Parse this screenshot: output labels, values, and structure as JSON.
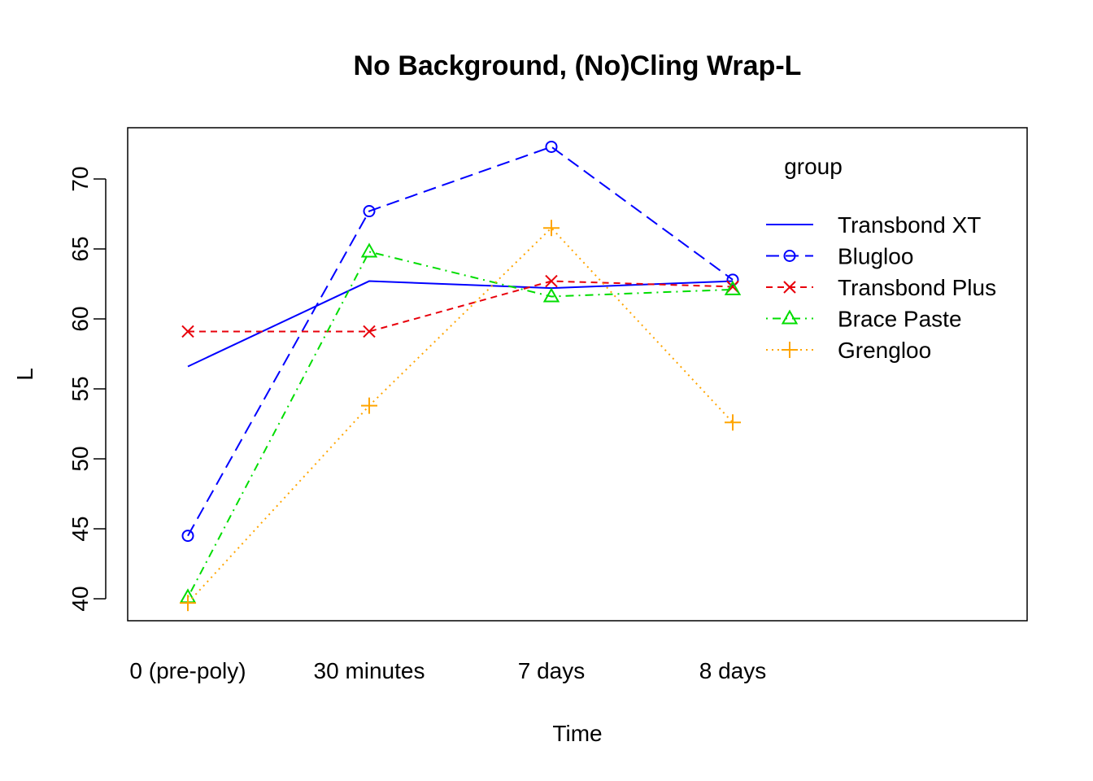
{
  "chart_data": {
    "type": "line",
    "title": "No Background, (No)Cling Wrap-L",
    "xlabel": "Time",
    "ylabel": "L",
    "categories": [
      "0 (pre-poly)",
      "30 minutes",
      "7 days",
      "8 days"
    ],
    "yticks": [
      40,
      45,
      50,
      55,
      60,
      65,
      70
    ],
    "ylim": [
      38.5,
      72.5
    ],
    "grid": false,
    "legend": {
      "title": "group",
      "position": "top-right"
    },
    "series": [
      {
        "name": "Transbond XT",
        "values": [
          56.6,
          62.7,
          62.2,
          62.7
        ],
        "color": "#0000FF",
        "dash": "solid",
        "marker": "none"
      },
      {
        "name": "Blugloo",
        "values": [
          44.5,
          67.7,
          72.3,
          62.8
        ],
        "color": "#0000FF",
        "dash": "dashed",
        "marker": "circle"
      },
      {
        "name": "Transbond Plus",
        "values": [
          59.1,
          59.1,
          62.7,
          62.3
        ],
        "color": "#E8000B",
        "dash": "dashed-short",
        "marker": "x"
      },
      {
        "name": "Brace Paste",
        "values": [
          40.1,
          64.8,
          61.6,
          62.1
        ],
        "color": "#00DD00",
        "dash": "dotdash",
        "marker": "triangle"
      },
      {
        "name": "Grengloo",
        "values": [
          39.7,
          53.8,
          66.5,
          52.6
        ],
        "color": "#FFA500",
        "dash": "dotted",
        "marker": "plus"
      }
    ]
  }
}
